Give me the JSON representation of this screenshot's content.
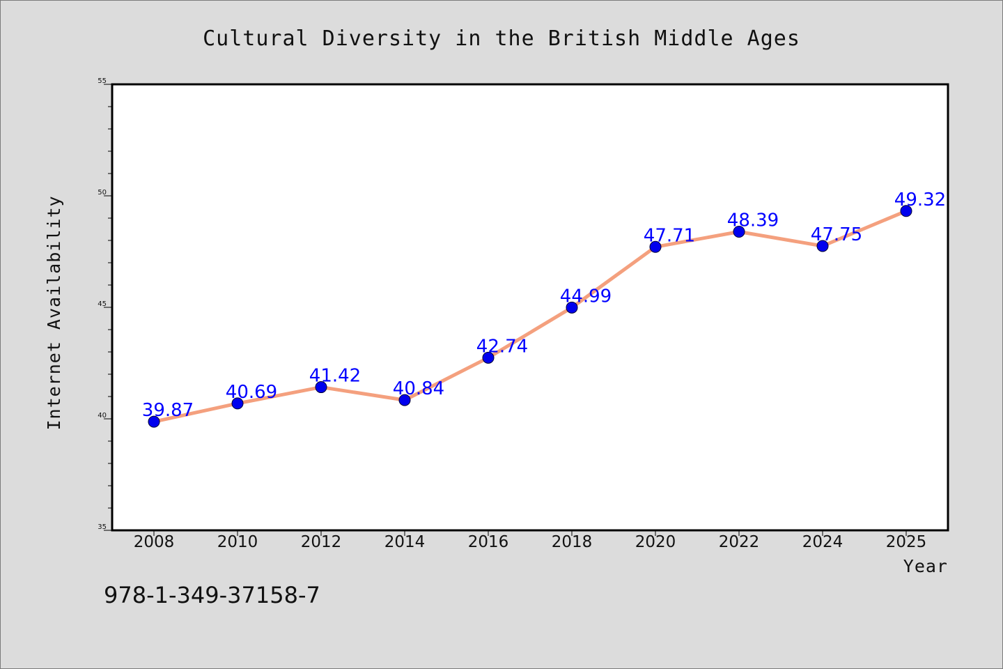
{
  "chart_data": {
    "type": "line",
    "title": "Cultural Diversity in the British Middle Ages",
    "xlabel": "Year",
    "ylabel": "Internet Availability",
    "x": [
      2008,
      2010,
      2012,
      2014,
      2016,
      2018,
      2020,
      2022,
      2024,
      2025
    ],
    "series": [
      {
        "values": [
          39.87,
          40.69,
          41.42,
          40.84,
          42.74,
          44.99,
          47.71,
          48.39,
          47.75,
          49.32
        ]
      }
    ],
    "data_labels": [
      "39.87",
      "40.69",
      "41.42",
      "40.84",
      "42.74",
      "44.99",
      "47.71",
      "48.39",
      "47.75",
      "49.32"
    ],
    "xticks": [
      "2008",
      "2010",
      "2012",
      "2014",
      "2016",
      "2018",
      "2020",
      "2022",
      "2024",
      "2025"
    ],
    "yticks": [
      "35",
      "40",
      "45",
      "50",
      "55"
    ],
    "ylim": [
      35,
      55
    ],
    "grid": false,
    "colors": {
      "line": "#f4a07e",
      "marker": "#0000ee",
      "label": "#0000ff",
      "plot_background": "#ffffff",
      "figure_background": "#dcdcdc"
    }
  },
  "footer": {
    "code": "978-1-349-37158-7"
  }
}
